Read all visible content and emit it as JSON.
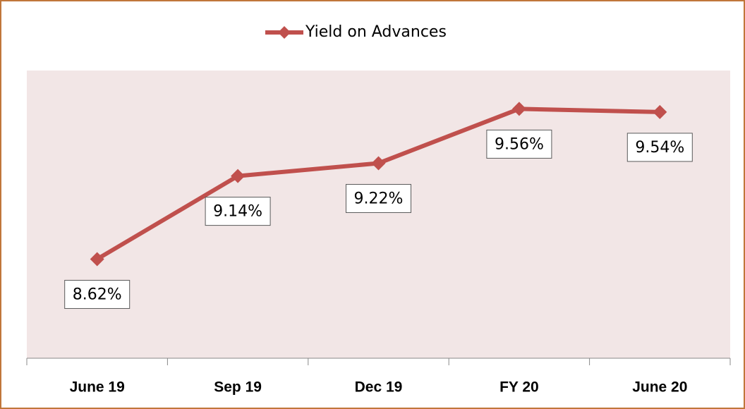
{
  "chart_data": {
    "type": "line",
    "categories": [
      "June 19",
      "Sep 19",
      "Dec 19",
      "FY 20",
      "June 20"
    ],
    "series": [
      {
        "name": "Yield on Advances",
        "color": "#c0504d",
        "values": [
          8.62,
          9.14,
          9.22,
          9.56,
          9.54
        ],
        "value_labels": [
          "8.62%",
          "9.14%",
          "9.22%",
          "9.56%",
          "9.54%"
        ]
      }
    ],
    "ylim": [
      8.0,
      9.8
    ],
    "legend": "top",
    "background": "#f2e6e6"
  }
}
